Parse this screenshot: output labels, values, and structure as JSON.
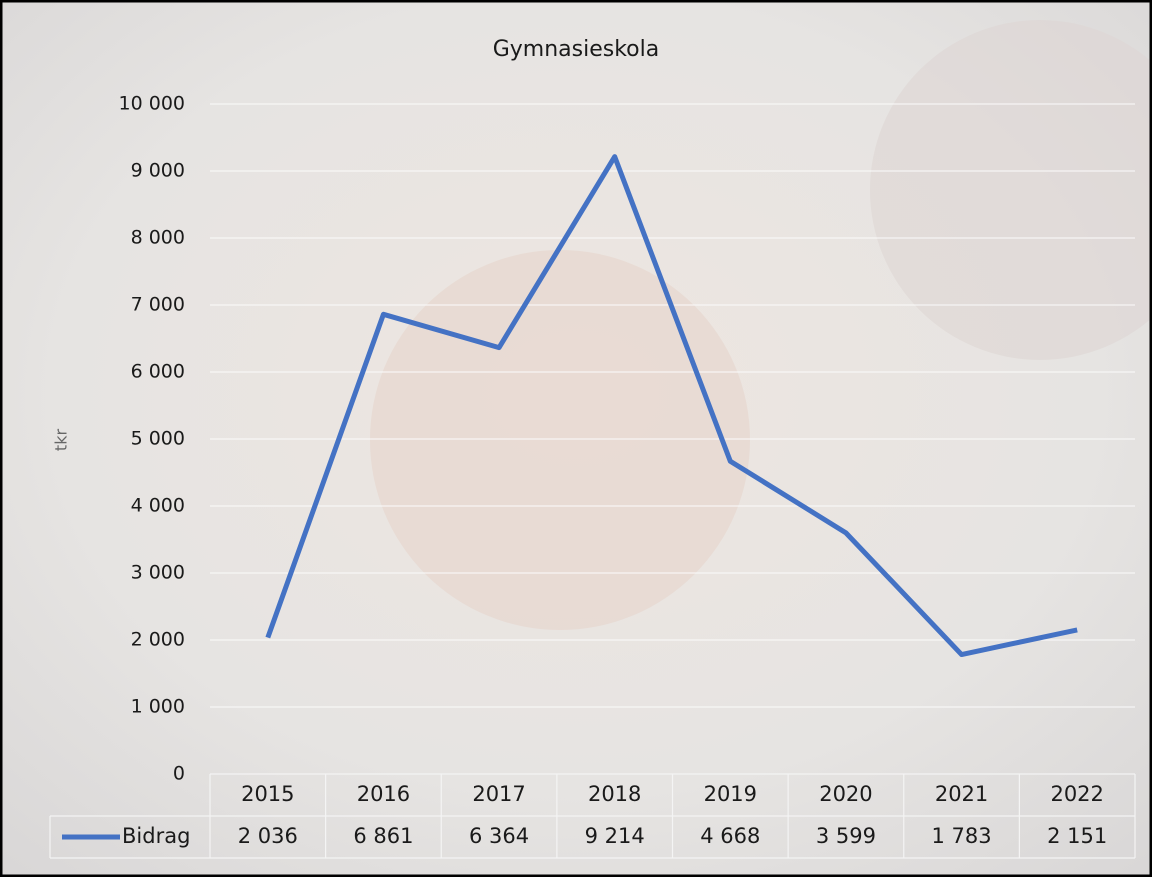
{
  "chart_data": {
    "type": "line",
    "title": "Gymnasieskola",
    "y_label": "tkr",
    "categories": [
      "2015",
      "2016",
      "2017",
      "2018",
      "2019",
      "2020",
      "2021",
      "2022"
    ],
    "series": [
      {
        "name": "Bidrag",
        "color": "#4472c4",
        "values": [
          2036,
          6861,
          6364,
          9214,
          4668,
          3599,
          1783,
          2151
        ],
        "value_labels": [
          "2 036",
          "6 861",
          "6 364",
          "9 214",
          "4 668",
          "3 599",
          "1 783",
          "2 151"
        ]
      }
    ],
    "ylim": [
      0,
      10000
    ],
    "yticks": [
      0,
      {
        "value": 1000,
        "label": "1 000"
      },
      {
        "value": 2000,
        "label": "2 000"
      },
      {
        "value": 3000,
        "label": "3 000"
      },
      {
        "value": 4000,
        "label": "4 000"
      },
      {
        "value": 5000,
        "label": "5 000"
      },
      {
        "value": 6000,
        "label": "6 000"
      },
      {
        "value": 7000,
        "label": "7 000"
      },
      {
        "value": 8000,
        "label": "8 000"
      },
      {
        "value": 9000,
        "label": "9 000"
      },
      {
        "value": 10000,
        "label": "10 000"
      }
    ],
    "grid": true,
    "data_table": true
  }
}
